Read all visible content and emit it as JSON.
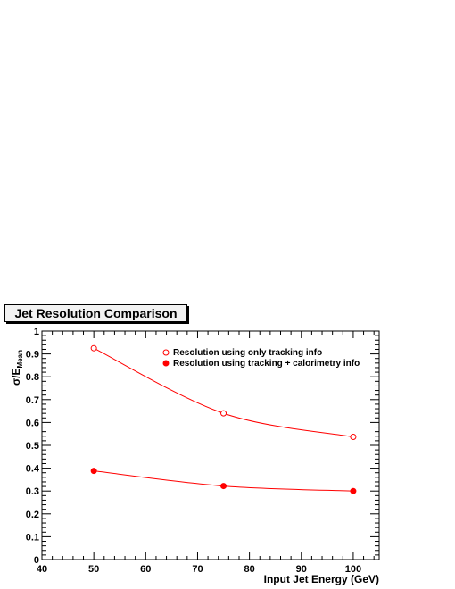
{
  "chart_data": {
    "type": "line",
    "title": "Jet Resolution Comparison",
    "xlabel": "Input Jet Energy (GeV)",
    "ylabel_main": "σ/E",
    "ylabel_sub": "Mean",
    "xlim": [
      40,
      105
    ],
    "ylim": [
      0,
      1
    ],
    "x_ticks": [
      40,
      50,
      60,
      70,
      80,
      90,
      100
    ],
    "y_ticks": [
      0,
      0.1,
      0.2,
      0.3,
      0.4,
      0.5,
      0.6,
      0.7,
      0.8,
      0.9,
      1
    ],
    "grid": false,
    "legend_position": "top-right",
    "series": [
      {
        "name": "Resolution using only tracking info",
        "marker": "open-circle",
        "color": "#ff0000",
        "x": [
          50,
          75,
          100
        ],
        "y": [
          0.925,
          0.64,
          0.537
        ]
      },
      {
        "name": "Resolution using tracking + calorimetry info",
        "marker": "filled-circle",
        "color": "#ff0000",
        "x": [
          50,
          75,
          100
        ],
        "y": [
          0.388,
          0.322,
          0.3
        ]
      }
    ]
  }
}
